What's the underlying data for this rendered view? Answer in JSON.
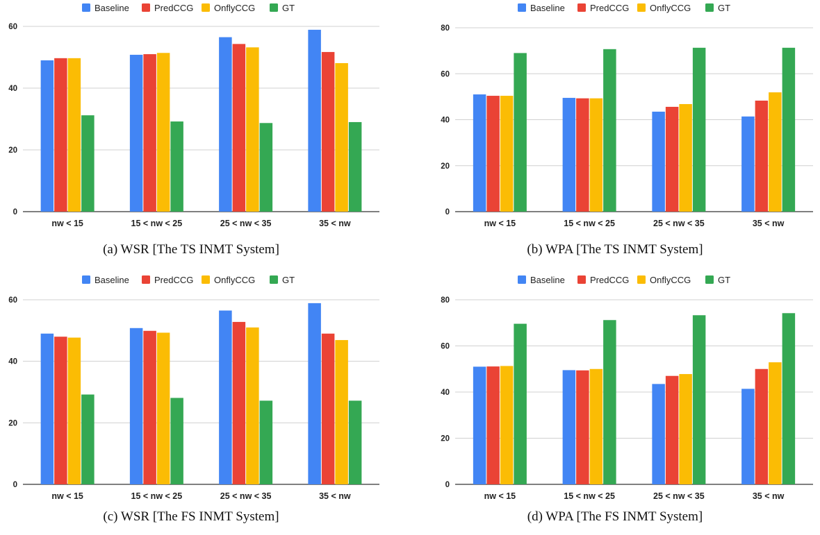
{
  "legend": [
    {
      "name": "Baseline",
      "color": "#4285f4"
    },
    {
      "name": "PredCCG",
      "color": "#ea4335"
    },
    {
      "name": "OnflyCCG",
      "color": "#fbbc04"
    },
    {
      "name": "GT",
      "color": "#34a853"
    }
  ],
  "chart_data": [
    {
      "type": "bar",
      "categories": [
        "nw < 15",
        "15 < nw < 25",
        "25 < nw < 35",
        "35 < nw"
      ],
      "yticks": [
        "0",
        "20",
        "40",
        "60"
      ],
      "ylim": [
        0,
        60
      ],
      "grid": true,
      "legend_position": "top",
      "series": [
        {
          "name": "Baseline",
          "values": [
            49.0,
            50.8,
            56.5,
            58.9
          ]
        },
        {
          "name": "PredCCG",
          "values": [
            49.7,
            51.0,
            54.3,
            51.7
          ]
        },
        {
          "name": "OnflyCCG",
          "values": [
            49.7,
            51.4,
            53.2,
            48.1
          ]
        },
        {
          "name": "GT",
          "values": [
            31.2,
            29.2,
            28.7,
            29.0
          ]
        }
      ],
      "caption": "(a) WSR [The TS INMT System]"
    },
    {
      "type": "bar",
      "categories": [
        "nw < 15",
        "15 < nw < 25",
        "25 < nw < 35",
        "35 < nw"
      ],
      "yticks": [
        "0",
        "20",
        "40",
        "60",
        "80"
      ],
      "ylim": [
        0,
        80
      ],
      "grid": true,
      "legend_position": "top",
      "series": [
        {
          "name": "Baseline",
          "values": [
            51.0,
            49.5,
            43.5,
            41.4
          ]
        },
        {
          "name": "PredCCG",
          "values": [
            50.4,
            49.3,
            45.6,
            48.3
          ]
        },
        {
          "name": "OnflyCCG",
          "values": [
            50.4,
            49.3,
            46.8,
            51.9
          ]
        },
        {
          "name": "GT",
          "values": [
            69.0,
            70.7,
            71.3,
            71.3
          ]
        }
      ],
      "caption": "(b) WPA [The TS INMT System]"
    },
    {
      "type": "bar",
      "categories": [
        "nw < 15",
        "15 < nw < 25",
        "25 < nw < 35",
        "35 < nw"
      ],
      "yticks": [
        "0",
        "20",
        "40",
        "60"
      ],
      "ylim": [
        0,
        60
      ],
      "grid": true,
      "legend_position": "top",
      "series": [
        {
          "name": "Baseline",
          "values": [
            49.0,
            50.8,
            56.5,
            58.9
          ]
        },
        {
          "name": "PredCCG",
          "values": [
            48.0,
            49.9,
            52.8,
            49.0
          ]
        },
        {
          "name": "OnflyCCG",
          "values": [
            47.7,
            49.3,
            51.0,
            46.9
          ]
        },
        {
          "name": "GT",
          "values": [
            29.2,
            28.1,
            27.2,
            27.2
          ]
        }
      ],
      "caption": "(c) WSR [The FS INMT System]"
    },
    {
      "type": "bar",
      "categories": [
        "nw < 15",
        "15 < nw < 25",
        "25 < nw < 35",
        "35 < nw"
      ],
      "yticks": [
        "0",
        "20",
        "40",
        "60",
        "80"
      ],
      "ylim": [
        0,
        80
      ],
      "grid": true,
      "legend_position": "top",
      "series": [
        {
          "name": "Baseline",
          "values": [
            51.0,
            49.5,
            43.5,
            41.4
          ]
        },
        {
          "name": "PredCCG",
          "values": [
            51.1,
            49.4,
            47.0,
            50.0
          ]
        },
        {
          "name": "OnflyCCG",
          "values": [
            51.3,
            50.0,
            47.8,
            52.9
          ]
        },
        {
          "name": "GT",
          "values": [
            69.6,
            71.2,
            73.3,
            74.2
          ]
        }
      ],
      "caption": "(d) WPA [The FS INMT System]"
    }
  ]
}
